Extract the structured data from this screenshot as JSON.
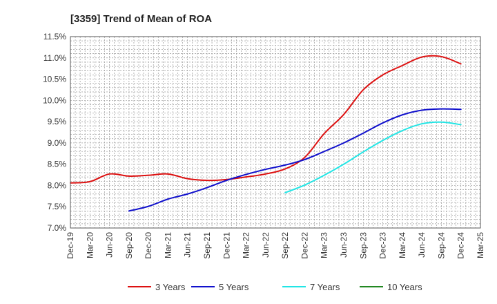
{
  "chart_data": {
    "type": "line",
    "title": "[3359]  Trend of Mean of ROA",
    "xlabel": "",
    "ylabel": "",
    "categories": [
      "Dec-19",
      "Mar-20",
      "Jun-20",
      "Sep-20",
      "Dec-20",
      "Mar-21",
      "Jun-21",
      "Sep-21",
      "Dec-21",
      "Mar-22",
      "Jun-22",
      "Sep-22",
      "Dec-22",
      "Mar-23",
      "Jun-23",
      "Sep-23",
      "Dec-23",
      "Mar-24",
      "Jun-24",
      "Sep-24",
      "Dec-24",
      "Mar-25"
    ],
    "y_ticks": [
      "7.0%",
      "7.5%",
      "8.0%",
      "8.5%",
      "9.0%",
      "9.5%",
      "10.0%",
      "10.5%",
      "11.0%",
      "11.5%"
    ],
    "ylim": [
      7.0,
      11.5
    ],
    "grid": true,
    "legend_position": "bottom",
    "series": [
      {
        "name": "3 Years",
        "color": "#dd1111",
        "values": [
          8.06,
          8.09,
          8.27,
          8.22,
          8.24,
          8.27,
          8.16,
          8.12,
          8.14,
          8.2,
          8.27,
          8.39,
          8.66,
          9.22,
          9.67,
          10.25,
          10.6,
          10.82,
          11.02,
          11.03,
          10.86,
          null
        ]
      },
      {
        "name": "5 Years",
        "color": "#1111cc",
        "values": [
          null,
          null,
          null,
          7.4,
          7.51,
          7.68,
          7.8,
          7.95,
          8.12,
          8.26,
          8.38,
          8.48,
          8.61,
          8.8,
          9.0,
          9.23,
          9.47,
          9.66,
          9.77,
          9.8,
          9.79,
          null
        ]
      },
      {
        "name": "7 Years",
        "color": "#22e5e5",
        "values": [
          null,
          null,
          null,
          null,
          null,
          null,
          null,
          null,
          null,
          null,
          null,
          7.83,
          8.01,
          8.24,
          8.5,
          8.79,
          9.06,
          9.29,
          9.45,
          9.49,
          9.43,
          null
        ]
      },
      {
        "name": "10 Years",
        "color": "#228822",
        "values": [
          null,
          null,
          null,
          null,
          null,
          null,
          null,
          null,
          null,
          null,
          null,
          null,
          null,
          null,
          null,
          null,
          null,
          null,
          null,
          null,
          null,
          null
        ]
      }
    ]
  }
}
